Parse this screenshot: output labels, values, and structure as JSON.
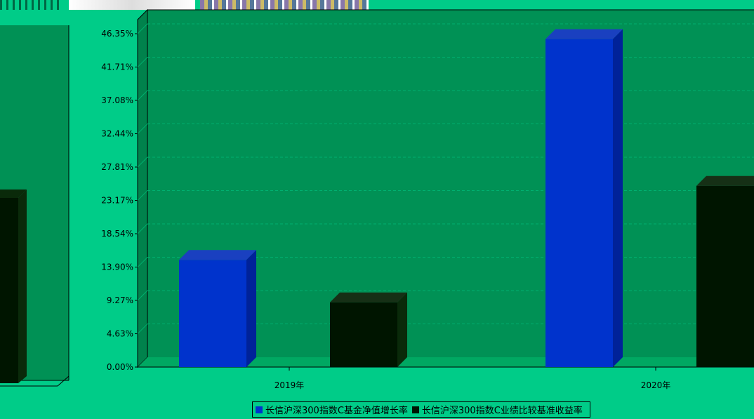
{
  "colors": {
    "background": "#00cc88",
    "plot_area": "#009155",
    "series_1": "#0033cc",
    "series_2": "#001500"
  },
  "chart_data": {
    "type": "bar",
    "categories": [
      "2019年",
      "2020年"
    ],
    "series": [
      {
        "name": "长信沪深300指数C基金净值增长率",
        "values": [
          14.9,
          45.6
        ]
      },
      {
        "name": "长信沪深300指数C业绩比较基准收益率",
        "values": [
          9.0,
          25.2
        ]
      }
    ],
    "yticks": [
      "0.00%",
      "4.63%",
      "9.27%",
      "13.90%",
      "18.54%",
      "23.17%",
      "27.81%",
      "32.44%",
      "37.08%",
      "41.71%",
      "46.35%"
    ],
    "ylim": [
      0,
      46.35
    ],
    "grid": true,
    "legend_position": "bottom-center"
  }
}
